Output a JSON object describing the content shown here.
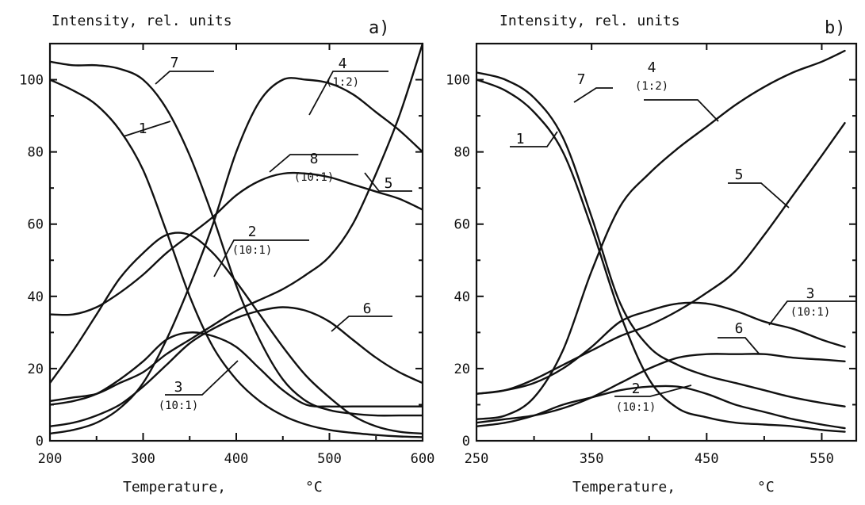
{
  "chart_data": [
    {
      "type": "line",
      "panel": "a)",
      "ylabel": "Intensity, rel. units",
      "xlabel": "Temperature,",
      "xlabel_unit": "°C",
      "xlim": [
        200,
        600
      ],
      "ylim": [
        0,
        110
      ],
      "xticks": [
        200,
        300,
        400,
        500,
        600
      ],
      "yticks": [
        0,
        20,
        40,
        60,
        80,
        100
      ],
      "grid": false,
      "series": [
        {
          "name": "1",
          "sub": "",
          "x": [
            200,
            225,
            250,
            275,
            300,
            325,
            350,
            375,
            400,
            425,
            450,
            475,
            500,
            525,
            550,
            575,
            600
          ],
          "y": [
            100,
            97,
            93,
            86,
            75,
            58,
            40,
            26,
            17,
            11,
            7,
            4.5,
            3,
            2.2,
            1.6,
            1.2,
            1
          ]
        },
        {
          "name": "2",
          "sub": "(10:1)",
          "x": [
            200,
            225,
            250,
            275,
            300,
            325,
            350,
            375,
            400,
            425,
            450,
            475,
            500,
            525,
            550,
            575,
            600
          ],
          "y": [
            35,
            35,
            37,
            41,
            46,
            52,
            57,
            62,
            68,
            72,
            74,
            74,
            73,
            71,
            69,
            67,
            64
          ]
        },
        {
          "name": "3",
          "sub": "(10:1)",
          "x": [
            200,
            225,
            250,
            275,
            300,
            325,
            350,
            375,
            400,
            425,
            450,
            475,
            500,
            525,
            550,
            575,
            600
          ],
          "y": [
            10,
            11,
            13,
            17,
            22,
            28,
            30,
            29,
            26,
            20,
            14,
            10,
            9.5,
            9.5,
            9.5,
            9.5,
            9.5
          ]
        },
        {
          "name": "4",
          "sub": "(1:2)",
          "x": [
            200,
            225,
            250,
            275,
            300,
            325,
            350,
            375,
            400,
            425,
            450,
            475,
            500,
            525,
            550,
            575,
            600
          ],
          "y": [
            2,
            3,
            5,
            9,
            16,
            28,
            43,
            60,
            80,
            94,
            100,
            100,
            99,
            96,
            91,
            86,
            80
          ]
        },
        {
          "name": "5",
          "sub": "",
          "x": [
            200,
            225,
            250,
            275,
            300,
            325,
            350,
            375,
            400,
            425,
            450,
            475,
            500,
            525,
            550,
            575,
            600
          ],
          "y": [
            11,
            12,
            13,
            16,
            19,
            24,
            28,
            32,
            36,
            39,
            42,
            46,
            51,
            60,
            74,
            90,
            110
          ]
        },
        {
          "name": "6",
          "sub": "",
          "x": [
            200,
            225,
            250,
            275,
            300,
            325,
            350,
            375,
            400,
            425,
            450,
            475,
            500,
            525,
            550,
            575,
            600
          ],
          "y": [
            4,
            5,
            7,
            10,
            15,
            21,
            27,
            31,
            34,
            36,
            37,
            36,
            33,
            28,
            23,
            19,
            16
          ]
        },
        {
          "name": "7",
          "sub": "",
          "x": [
            200,
            225,
            250,
            275,
            300,
            325,
            350,
            375,
            400,
            425,
            450,
            475,
            500,
            525,
            550,
            575,
            600
          ],
          "y": [
            105,
            104,
            104,
            103,
            100,
            92,
            79,
            62,
            43,
            28,
            17,
            11,
            8.5,
            7.5,
            7,
            7,
            7
          ]
        },
        {
          "name": "8",
          "sub": "(10:1)",
          "x": [
            200,
            225,
            250,
            275,
            300,
            325,
            350,
            375,
            400,
            425,
            450,
            475,
            500,
            525,
            550,
            575,
            600
          ],
          "y": [
            16,
            25,
            35,
            45,
            52,
            57,
            57,
            52,
            44,
            35,
            26,
            18,
            12,
            7,
            4,
            2.5,
            2
          ]
        }
      ]
    },
    {
      "type": "line",
      "panel": "b)",
      "ylabel": "Intensity, rel. units",
      "xlabel": "Temperature,",
      "xlabel_unit": "°C",
      "xlim": [
        250,
        580
      ],
      "ylim": [
        0,
        110
      ],
      "xticks": [
        250,
        350,
        450,
        550
      ],
      "yticks": [
        0,
        20,
        40,
        60,
        80,
        100
      ],
      "grid": false,
      "series": [
        {
          "name": "1",
          "sub": "",
          "x": [
            250,
            275,
            300,
            325,
            350,
            375,
            400,
            425,
            450,
            475,
            500,
            525,
            550,
            570
          ],
          "y": [
            100,
            97,
            91,
            80,
            59,
            35,
            17,
            9,
            6.5,
            5,
            4.5,
            4,
            3,
            2.5
          ]
        },
        {
          "name": "2",
          "sub": "(10:1)",
          "x": [
            250,
            275,
            300,
            325,
            350,
            375,
            400,
            425,
            450,
            475,
            500,
            525,
            550,
            570
          ],
          "y": [
            4,
            5,
            7,
            10,
            12,
            14,
            15,
            15,
            13,
            10,
            8,
            6,
            4.5,
            3.5
          ]
        },
        {
          "name": "3",
          "sub": "(10:1)",
          "x": [
            250,
            275,
            300,
            325,
            350,
            375,
            400,
            425,
            450,
            475,
            500,
            525,
            550,
            570
          ],
          "y": [
            13,
            14,
            16,
            20,
            26,
            33,
            36,
            38,
            38,
            36,
            33,
            31,
            28,
            26
          ]
        },
        {
          "name": "4",
          "sub": "(1:2)",
          "x": [
            250,
            275,
            300,
            325,
            350,
            375,
            400,
            425,
            450,
            475,
            500,
            525,
            550,
            570
          ],
          "y": [
            6,
            7,
            12,
            25,
            47,
            65,
            74,
            81,
            87,
            93,
            98,
            102,
            105,
            108
          ]
        },
        {
          "name": "5",
          "sub": "",
          "x": [
            250,
            275,
            300,
            325,
            350,
            375,
            400,
            425,
            450,
            475,
            500,
            525,
            550,
            570
          ],
          "y": [
            13,
            14,
            17,
            21,
            25,
            29,
            32,
            36,
            41,
            47,
            57,
            68,
            79,
            88
          ]
        },
        {
          "name": "6",
          "sub": "",
          "x": [
            250,
            275,
            300,
            325,
            350,
            375,
            400,
            425,
            450,
            475,
            500,
            525,
            550,
            570
          ],
          "y": [
            5,
            6,
            7,
            9,
            12,
            16,
            20,
            23,
            24,
            24,
            24,
            23,
            22.5,
            22
          ]
        },
        {
          "name": "7",
          "sub": "",
          "x": [
            250,
            275,
            300,
            325,
            350,
            375,
            400,
            425,
            450,
            475,
            500,
            525,
            550,
            570
          ],
          "y": [
            102,
            100,
            95,
            84,
            62,
            38,
            26,
            21,
            18,
            16,
            14,
            12,
            10.5,
            9.5
          ]
        }
      ]
    }
  ]
}
